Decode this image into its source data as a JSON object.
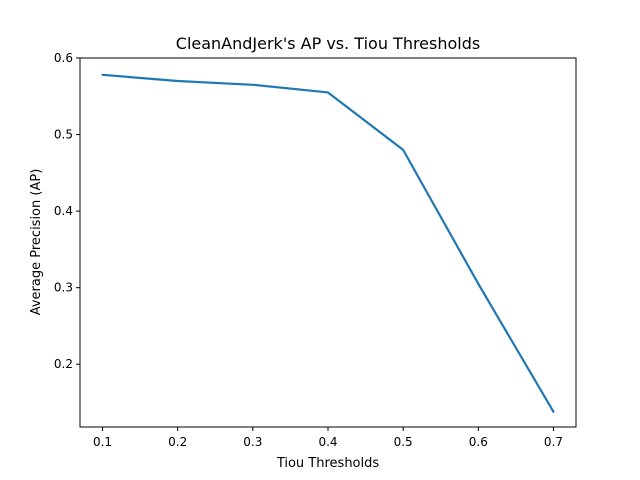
{
  "chart_data": {
    "type": "line",
    "title": "CleanAndJerk's AP vs. Tiou Thresholds",
    "xlabel": "Tiou Thresholds",
    "ylabel": "Average Precision (AP)",
    "xlim": [
      0.07,
      0.73
    ],
    "ylim": [
      0.118,
      0.6
    ],
    "xticks": [
      0.1,
      0.2,
      0.3,
      0.4,
      0.5,
      0.6,
      0.7
    ],
    "xtick_labels": [
      "0.1",
      "0.2",
      "0.3",
      "0.4",
      "0.5",
      "0.6",
      "0.7"
    ],
    "yticks": [
      0.2,
      0.3,
      0.4,
      0.5,
      0.6
    ],
    "ytick_labels": [
      "0.2",
      "0.3",
      "0.4",
      "0.5",
      "0.6"
    ],
    "grid": false,
    "series": [
      {
        "color": "#1f77b4",
        "x": [
          0.1,
          0.2,
          0.3,
          0.4,
          0.5,
          0.6,
          0.7
        ],
        "y": [
          0.578,
          0.57,
          0.565,
          0.555,
          0.48,
          0.305,
          0.138
        ]
      }
    ]
  }
}
